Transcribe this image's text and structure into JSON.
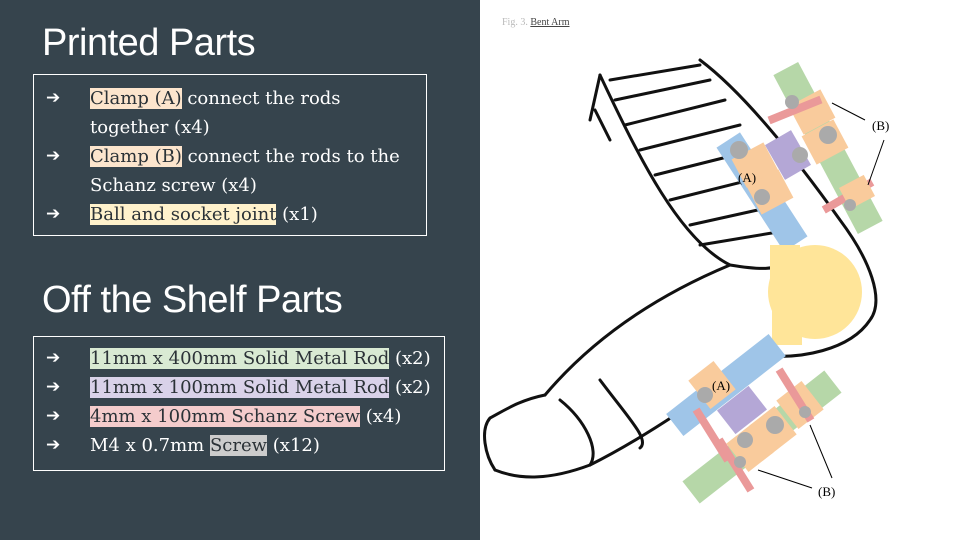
{
  "printed": {
    "title": "Printed Parts",
    "items": [
      {
        "highlight": "Clamp (A)",
        "color": "#fce5cd",
        "rest": " connect the rods together (x4)"
      },
      {
        "highlight": "Clamp (B)",
        "color": "#fce5cd",
        "rest": " connect the rods to the Schanz screw (x4)"
      },
      {
        "highlight": "Ball and socket joint",
        "color": "#fff2cc",
        "rest": " (x1)"
      }
    ]
  },
  "shelf": {
    "title": "Off the Shelf Parts",
    "items": [
      {
        "prefix": "",
        "highlight": "11mm x 400mm Solid Metal Rod",
        "color": "#d9ead3",
        "rest": " (x2)"
      },
      {
        "prefix": "",
        "highlight": "11mm x 100mm Solid Metal Rod",
        "color": "#d9d2e9",
        "rest": " (x2)"
      },
      {
        "prefix": "",
        "highlight": "4mm x 100mm Schanz Screw",
        "color": "#f4cccc",
        "rest": " (x4)"
      },
      {
        "prefix": "M4 x 0.7mm ",
        "highlight": "Screw",
        "color": "#cccccc",
        "rest": " (x12)"
      }
    ]
  },
  "figure": {
    "caption_prefix": "Fig. 3. ",
    "caption_link": "Bent Arm",
    "labels": {
      "a": "(A)",
      "b": "(B)"
    }
  },
  "arrow_glyph": "➔"
}
